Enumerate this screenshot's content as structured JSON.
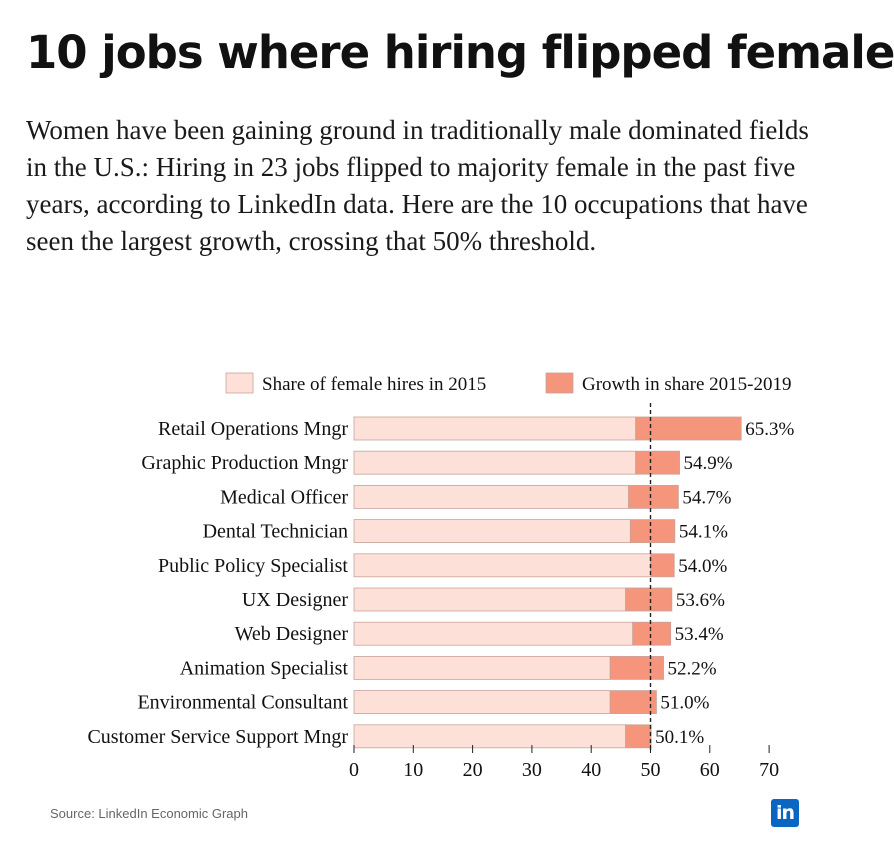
{
  "header": {
    "title": "10 jobs where hiring flipped female",
    "subtitle": "Women have been gaining ground in traditionally male dominated fields in the U.S.: Hiring in 23 jobs flipped to majority female in the past five years, according to LinkedIn data. Here are the 10 occupations that have seen the largest growth, crossing that 50% threshold."
  },
  "footer": {
    "source": "Source: LinkedIn Economic Graph",
    "logo_text": "in"
  },
  "colors": {
    "base": "#fde0d7",
    "growth": "#f4957c",
    "bar_stroke": "#c9a39a",
    "text": "#111111"
  },
  "chart_data": {
    "type": "bar",
    "orientation": "horizontal",
    "stacked": true,
    "categories": [
      "Retail Operations Mngr",
      "Graphic Production Mngr",
      "Medical Officer",
      "Dental Technician",
      "Public Policy Specialist",
      "UX Designer",
      "Web Designer",
      "Animation Specialist",
      "Environmental Consultant",
      "Customer Service Support Mngr"
    ],
    "series": [
      {
        "name": "Share of female hires in 2015",
        "values": [
          47.5,
          47.5,
          46.3,
          46.6,
          50.0,
          45.8,
          47.0,
          43.2,
          43.2,
          45.8
        ]
      },
      {
        "name": "Growth in share 2015-2019",
        "values": [
          17.8,
          7.4,
          8.4,
          7.5,
          4.0,
          7.8,
          6.4,
          9.0,
          7.8,
          4.3
        ]
      }
    ],
    "total_labels": [
      "65.3%",
      "54.9%",
      "54.7%",
      "54.1%",
      "54.0%",
      "53.6%",
      "53.4%",
      "52.2%",
      "51.0%",
      "50.1%"
    ],
    "xlim": [
      0,
      70
    ],
    "xticks": [
      0,
      10,
      20,
      30,
      40,
      50,
      60,
      70
    ],
    "xtick_labels": [
      "0",
      "10",
      "20",
      "30",
      "40",
      "50",
      "60",
      "70"
    ],
    "reference_line": 50,
    "legend_position": "top-right",
    "grid": false
  }
}
